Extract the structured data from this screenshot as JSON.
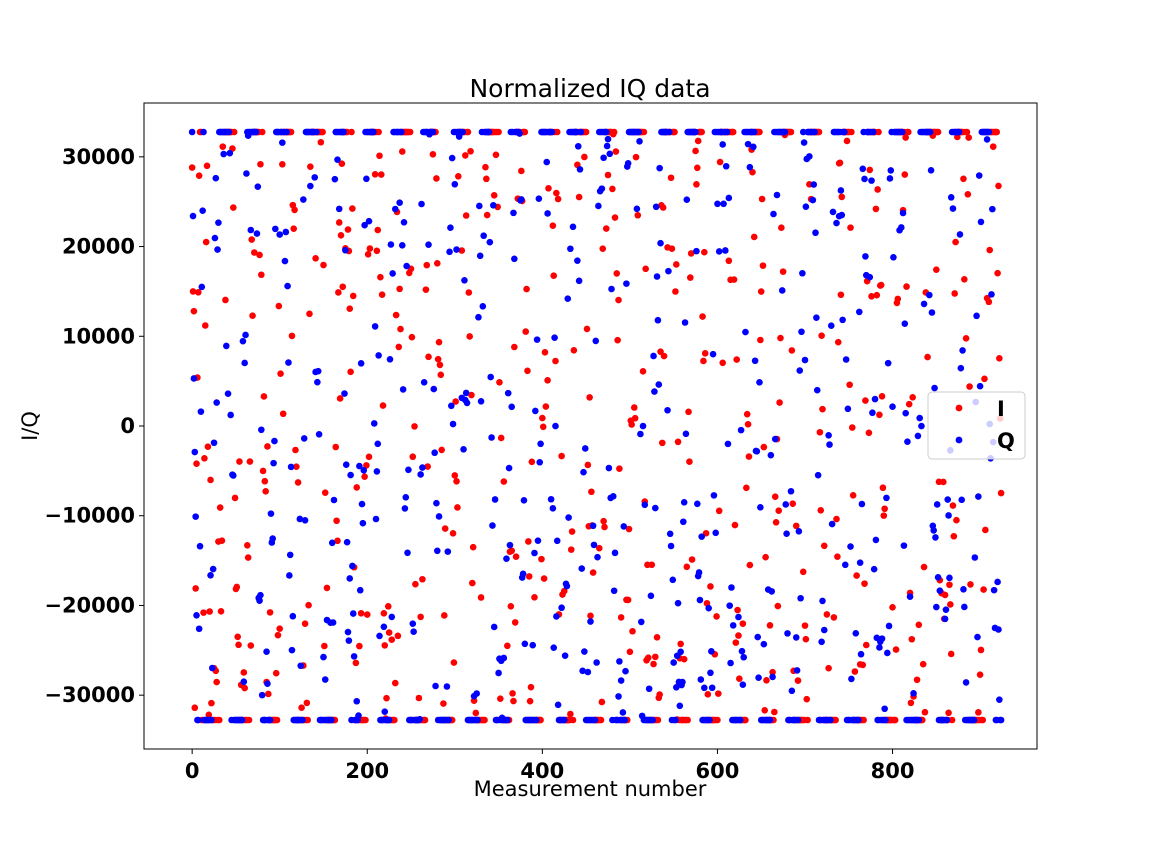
{
  "chart_data": {
    "type": "scatter",
    "title": "Normalized IQ data",
    "xlabel": "Measurement number",
    "ylabel": "I/Q",
    "xlim": [
      -55,
      965
    ],
    "ylim": [
      -36000,
      36000
    ],
    "xticks": [
      0,
      200,
      400,
      600,
      800
    ],
    "yticks": [
      -30000,
      -20000,
      -10000,
      0,
      10000,
      20000,
      30000
    ],
    "grid": false,
    "legend_position": "center-right",
    "n_points": 925,
    "saturation": [
      -32768,
      32767
    ],
    "series": [
      {
        "name": "I",
        "color": "#ff0000",
        "period": 33.5,
        "phase": 0.0,
        "sample_values": [
          28800,
          15000,
          12800,
          -31400,
          -18100,
          -4200,
          5400,
          14900,
          27900,
          32767,
          32767,
          -32768,
          -32768,
          -20800,
          -3600,
          11200,
          20500,
          29000
        ]
      },
      {
        "name": "Q",
        "color": "#0000ff",
        "period": 33.5,
        "phase": 1.3,
        "sample_values": [
          32767,
          23400,
          5300,
          -2900,
          -10100,
          -21100,
          -32768,
          -32768,
          -22600,
          -13400,
          1600,
          15500,
          24000,
          32767
        ]
      }
    ]
  }
}
